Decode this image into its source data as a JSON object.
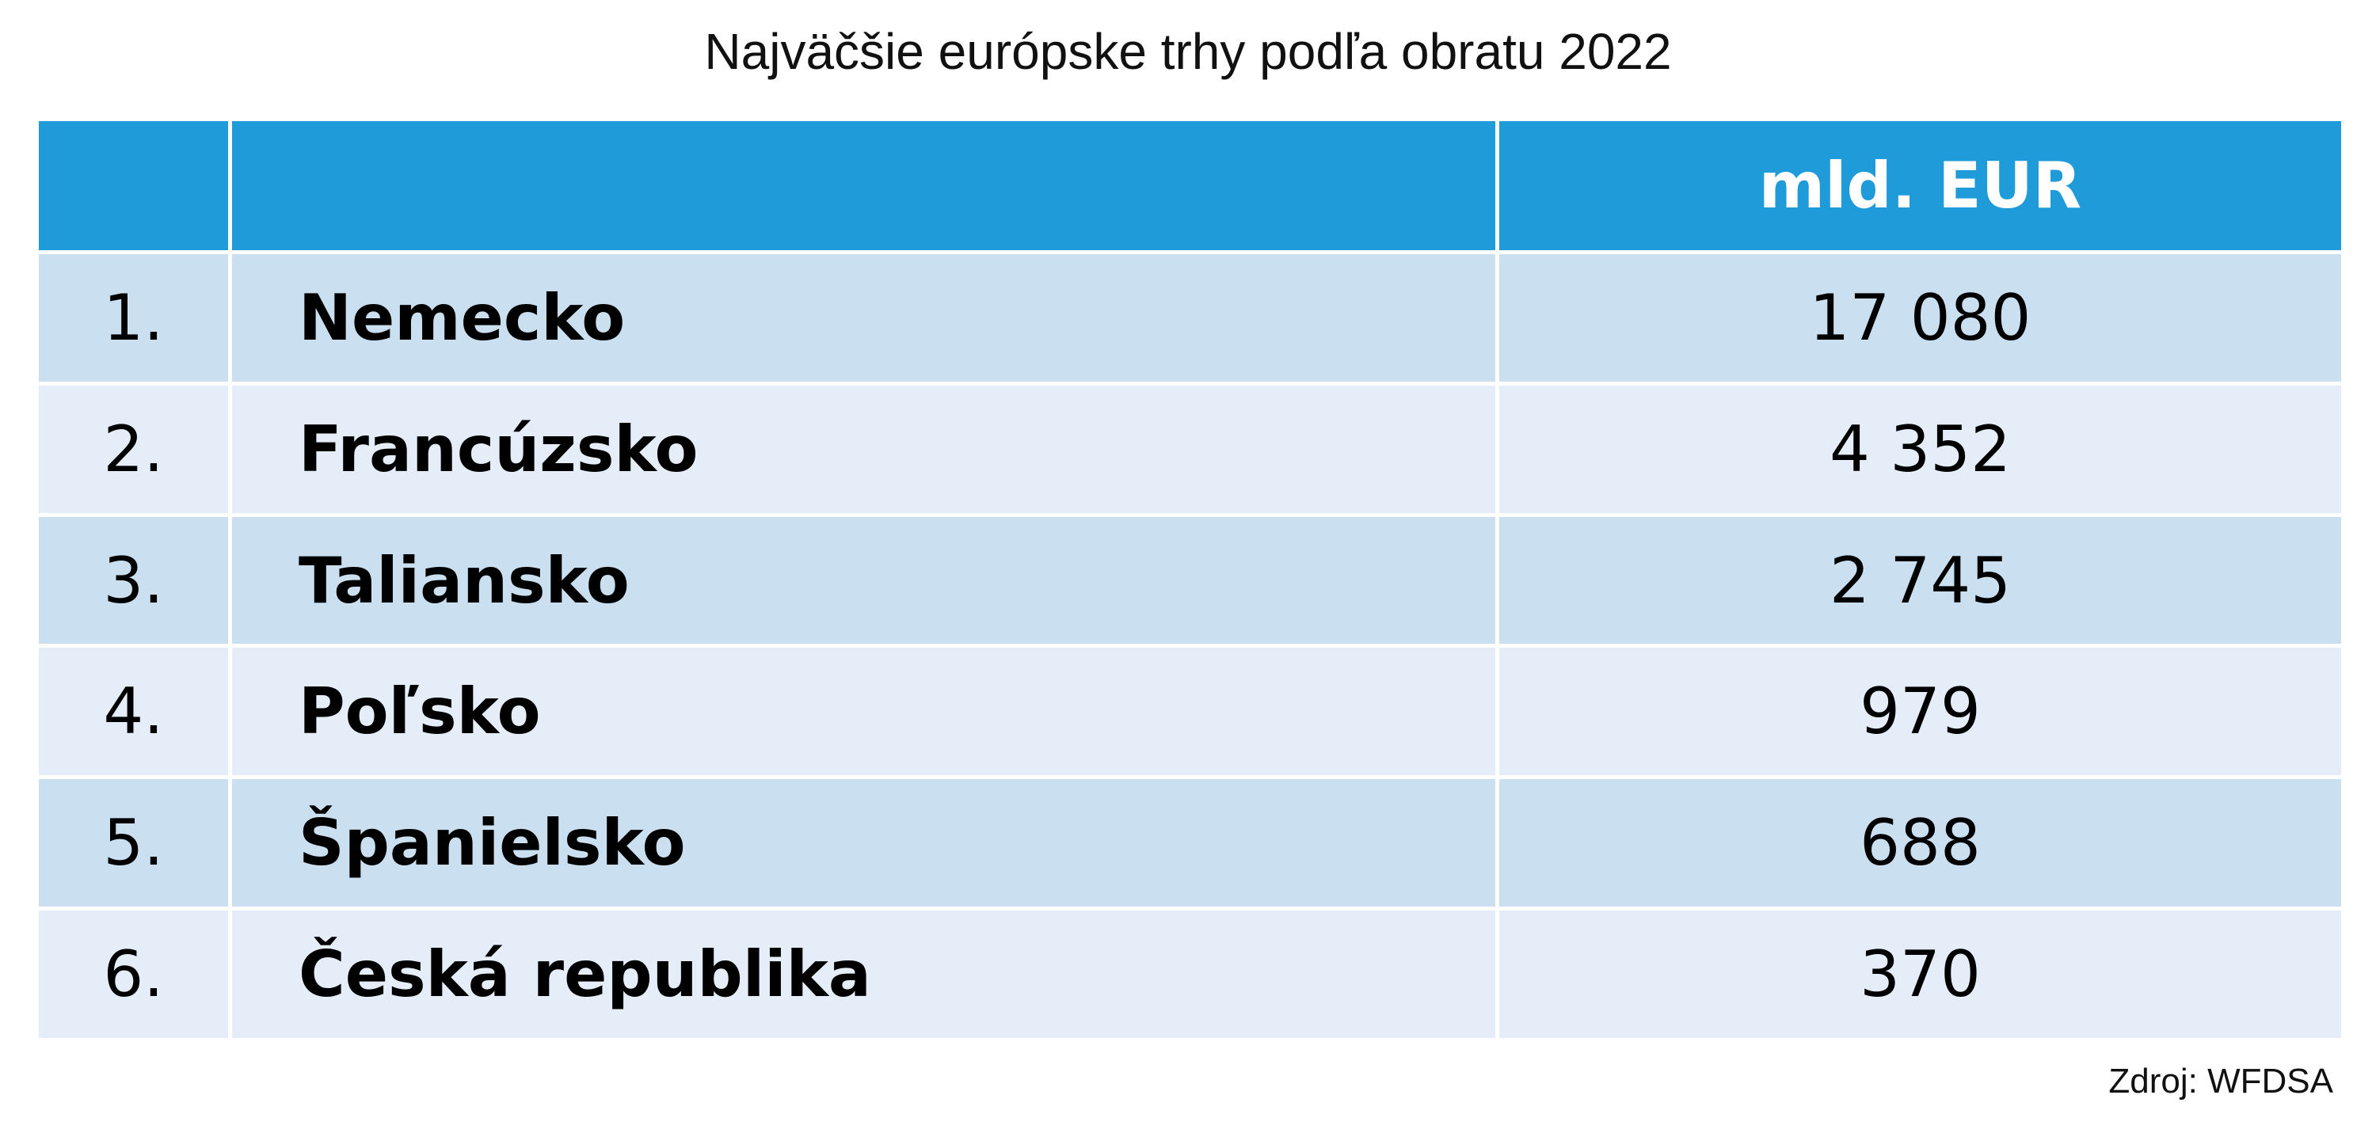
{
  "chart_data": {
    "type": "table",
    "title": "Najväčšie európske trhy podľa obratu 2022",
    "columns": [
      "",
      "",
      "mld. EUR"
    ],
    "rows": [
      {
        "rank": "1.",
        "country": "Nemecko",
        "value": "17 080"
      },
      {
        "rank": "2.",
        "country": "Francúzsko",
        "value": "4 352"
      },
      {
        "rank": "3.",
        "country": "Taliansko",
        "value": "2 745"
      },
      {
        "rank": "4.",
        "country": "Poľsko",
        "value": "979"
      },
      {
        "rank": "5.",
        "country": "Španielsko",
        "value": "688"
      },
      {
        "rank": "6.",
        "country": "Česká republika",
        "value": "370"
      }
    ],
    "values": [
      17080,
      4352,
      2745,
      979,
      688,
      370
    ],
    "source": "Zdroj: WFDSA"
  },
  "colors": {
    "header_bg": "#1f9bd9",
    "header_text": "#ffffff",
    "row_dark": "#cadff0",
    "row_light": "#e5eef8"
  }
}
